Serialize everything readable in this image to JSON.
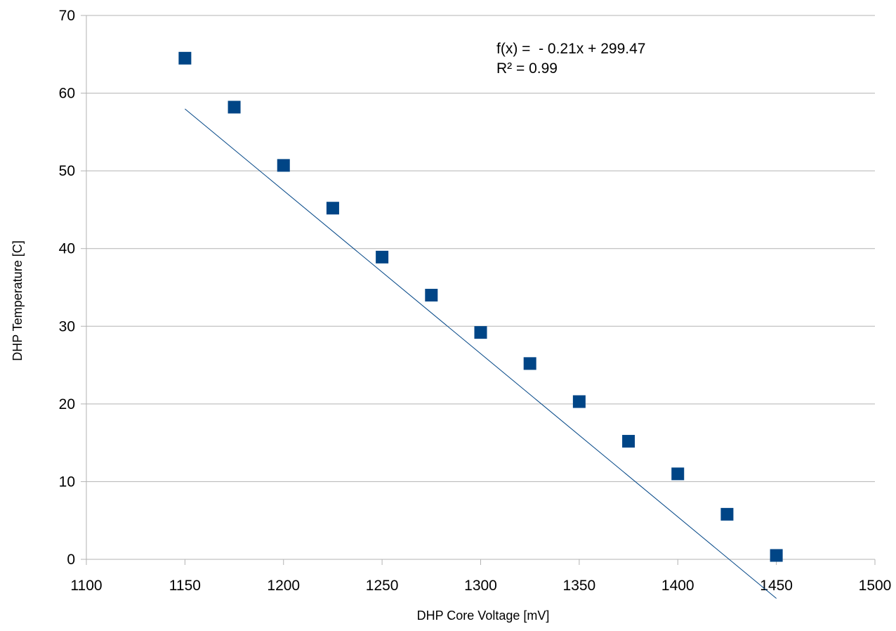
{
  "chart_data": {
    "type": "scatter",
    "title": "",
    "xlabel": "DHP Core Voltage [mV]",
    "ylabel": "DHP Temperature [C]",
    "xlim": [
      1100,
      1500
    ],
    "ylim": [
      0,
      70
    ],
    "x_ticks": [
      1100,
      1150,
      1200,
      1250,
      1300,
      1350,
      1400,
      1450,
      1500
    ],
    "y_ticks": [
      0,
      10,
      20,
      30,
      40,
      50,
      60,
      70
    ],
    "grid": {
      "horizontal": true,
      "vertical": false
    },
    "legend": "none",
    "series": [
      {
        "marker": "square",
        "color": "#004586",
        "x": [
          1150,
          1175,
          1200,
          1225,
          1250,
          1275,
          1300,
          1325,
          1350,
          1375,
          1400,
          1425,
          1450
        ],
        "y": [
          64.5,
          58.2,
          50.7,
          45.2,
          38.9,
          34.0,
          29.2,
          25.2,
          20.3,
          15.2,
          11.0,
          5.8,
          0.5
        ]
      }
    ],
    "trendline": {
      "type": "linear",
      "slope": -0.21,
      "intercept": 299.47,
      "x_range": [
        1150,
        1450
      ],
      "color": "#004586",
      "equation_label": "f(x) =  - 0.21x + 299.47",
      "r2_label": "R² = 0.99"
    }
  }
}
